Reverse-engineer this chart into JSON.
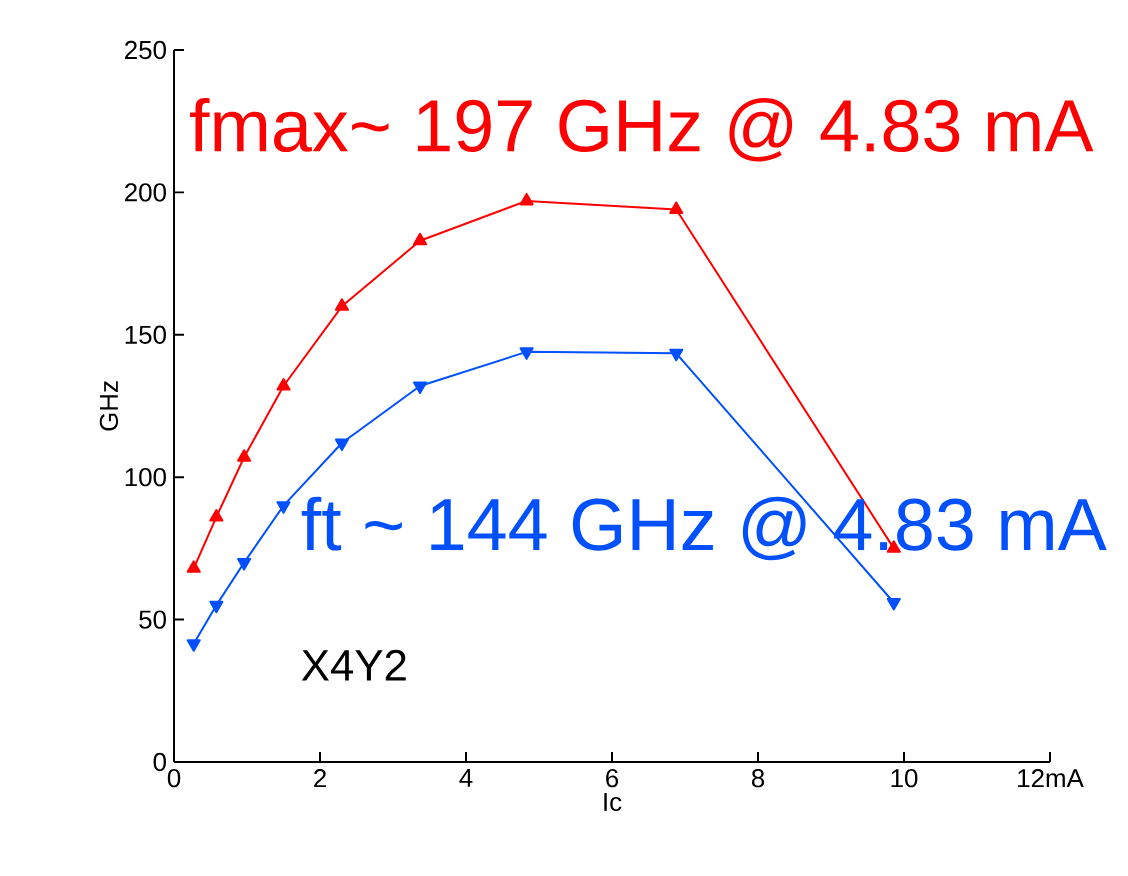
{
  "chart_data": {
    "type": "line",
    "xlabel": "Ic",
    "ylabel": "GHz",
    "x": [
      0.27,
      0.58,
      0.96,
      1.5,
      2.3,
      3.37,
      4.83,
      6.88,
      9.86
    ],
    "series": [
      {
        "color": "#ff0000",
        "values": [
          68,
          86,
          107,
          132,
          160,
          183,
          197,
          194,
          75
        ]
      },
      {
        "color": "#0050ff",
        "values": [
          41.5,
          55,
          70,
          90,
          112,
          132,
          144,
          143.5,
          56
        ]
      }
    ],
    "xlim": [
      0,
      12
    ],
    "xticks": [
      0,
      2,
      4,
      6,
      8,
      10,
      {
        "value": 12,
        "label": "12mA"
      }
    ],
    "ylim": [
      0,
      250
    ],
    "yticks": [
      0,
      50,
      100,
      150,
      200,
      250
    ],
    "marker": "triangle",
    "annotations": [
      "fmax~ 197 GHz @ 4.83 mA",
      "ft ~ 144 GHz @ 4.83 mA",
      "X4Y2"
    ]
  }
}
